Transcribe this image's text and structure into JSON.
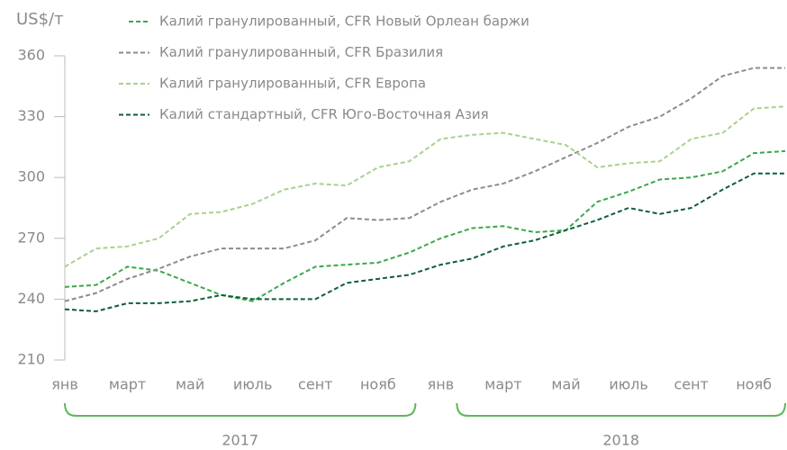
{
  "chart_data": {
    "type": "line",
    "y_label": "US$/т",
    "categories": [
      "янв",
      null,
      "март",
      null,
      "май",
      null,
      "июль",
      null,
      "сент",
      null,
      "нояб",
      null,
      "янв",
      null,
      "март",
      null,
      "май",
      null,
      "июль",
      null,
      "сент",
      null,
      "нояб",
      null
    ],
    "groups": [
      "2017",
      "2018"
    ],
    "series": [
      {
        "name": "Калий гранулированный, CFR Новый Орлеан баржи",
        "color": "#3aa84a",
        "values": [
          246,
          247,
          256,
          254,
          248,
          242,
          239,
          248,
          256,
          257,
          258,
          263,
          270,
          275,
          276,
          273,
          274,
          288,
          293,
          299,
          300,
          303,
          312,
          313
        ]
      },
      {
        "name": "Калий гранулированный, CFR Бразилия",
        "color": "#8c8c8c",
        "values": [
          239,
          243,
          250,
          255,
          261,
          265,
          265,
          265,
          269,
          280,
          279,
          280,
          288,
          294,
          297,
          303,
          310,
          317,
          325,
          330,
          339,
          350,
          354,
          354
        ]
      },
      {
        "name": "Калий гранулированный, CFR Европа",
        "color": "#a9d18e",
        "values": [
          256,
          265,
          266,
          270,
          282,
          283,
          287,
          294,
          297,
          296,
          305,
          308,
          319,
          321,
          322,
          319,
          316,
          305,
          307,
          308,
          319,
          322,
          334,
          335
        ]
      },
      {
        "name": "Калий стандартный, CFR Юго-Восточная Азия",
        "color": "#0d5e3a",
        "values": [
          235,
          234,
          238,
          238,
          239,
          242,
          240,
          240,
          240,
          248,
          250,
          252,
          257,
          260,
          266,
          269,
          274,
          279,
          285,
          282,
          285,
          294,
          302,
          302
        ]
      }
    ],
    "ylim": [
      210,
      360
    ],
    "yticks": [
      210,
      240,
      270,
      300,
      330,
      360
    ],
    "grid": false,
    "dashed": true
  }
}
